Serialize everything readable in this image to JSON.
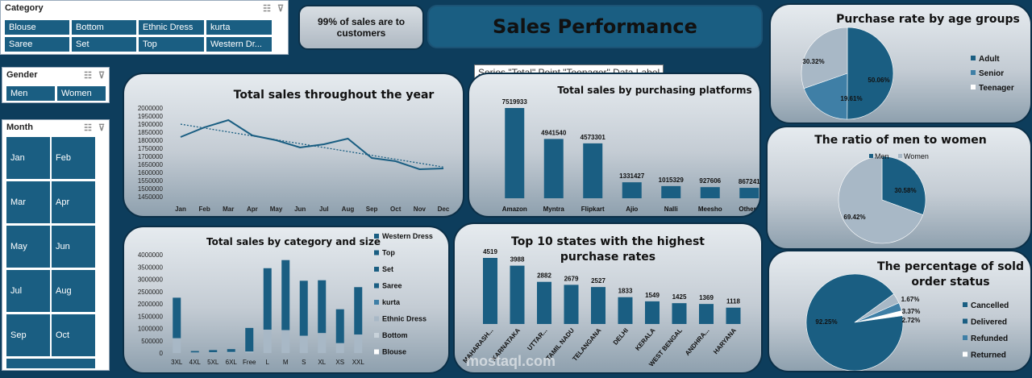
{
  "slicers": {
    "category": {
      "title": "Category",
      "items": [
        "Blouse",
        "Bottom",
        "Ethnic Dress",
        "kurta",
        "Saree",
        "Set",
        "Top",
        "Western Dr..."
      ]
    },
    "gender": {
      "title": "Gender",
      "items": [
        "Men",
        "Women"
      ]
    },
    "month": {
      "title": "Month",
      "items": [
        "Jan",
        "Feb",
        "Mar",
        "Apr",
        "May",
        "Jun",
        "Jul",
        "Aug",
        "Sep",
        "Oct"
      ]
    }
  },
  "kpi": {
    "text": "99% of sales are to customers"
  },
  "dashboard_title": "Sales Performance",
  "tooltip": "Series \"Total\" Point \"Teenager\" Data Label",
  "watermark": "mostaql.com",
  "colors": {
    "primary": "#1a5e82",
    "mid": "#3f7fa6",
    "light": "#a8b8c6",
    "bg": "#0d3d5c"
  },
  "chart_data": [
    {
      "id": "sales_by_month",
      "type": "line",
      "title": "Total sales throughout the year",
      "categories": [
        "Jan",
        "Feb",
        "Mar",
        "Apr",
        "May",
        "Jun",
        "Jul",
        "Aug",
        "Sep",
        "Oct",
        "Nov",
        "Dec"
      ],
      "values": [
        1820000,
        1880000,
        1925000,
        1830000,
        1800000,
        1755000,
        1775000,
        1810000,
        1690000,
        1670000,
        1620000,
        1625000
      ],
      "trendline": true,
      "ylim": [
        1450000,
        2000000
      ],
      "yticks": [
        "2000000",
        "1950000",
        "1900000",
        "1850000",
        "1800000",
        "1750000",
        "1700000",
        "1650000",
        "1600000",
        "1550000",
        "1500000",
        "1450000"
      ]
    },
    {
      "id": "sales_by_platform",
      "type": "bar",
      "title": "Total sales by purchasing platforms",
      "categories": [
        "Amazon",
        "Myntra",
        "Flipkart",
        "Ajio",
        "Nalli",
        "Meesho",
        "Others"
      ],
      "values": [
        7519933,
        4941540,
        4573301,
        1331427,
        1015329,
        927606,
        867241
      ],
      "labels": [
        "7519933",
        "4941540",
        "4573301",
        "1331427",
        "1015329",
        "927606",
        "867241"
      ]
    },
    {
      "id": "sales_by_category_size",
      "type": "bar",
      "stacked": true,
      "title": "Total sales by category and size",
      "categories": [
        "3XL",
        "4XL",
        "5XL",
        "6XL",
        "Free",
        "L",
        "M",
        "S",
        "XL",
        "XS",
        "XXL"
      ],
      "ylim": [
        0,
        4000000
      ],
      "yticks": [
        "4000000",
        "3500000",
        "3000000",
        "2500000",
        "2000000",
        "1500000",
        "1000000",
        "500000",
        "0"
      ],
      "legend": [
        "Western Dress",
        "Top",
        "Set",
        "Saree",
        "kurta",
        "Ethnic Dress",
        "Bottom",
        "Blouse"
      ],
      "totals": [
        2250000,
        80000,
        120000,
        160000,
        1020000,
        3450000,
        3780000,
        2940000,
        2960000,
        1780000,
        2680000
      ],
      "light_part": [
        600000,
        20000,
        30000,
        40000,
        60000,
        950000,
        930000,
        700000,
        810000,
        400000,
        750000
      ]
    },
    {
      "id": "top_states",
      "type": "bar",
      "title": "Top 10 states with the highest purchase rates",
      "categories": [
        "MAHARASH...",
        "KARNATAKA",
        "UTTAR...",
        "TAMIL NADU",
        "TELANGANA",
        "DELHI",
        "KERALA",
        "WEST BENGAL",
        "ANDHRA...",
        "HARYANA"
      ],
      "values": [
        4519,
        3988,
        2882,
        2679,
        2527,
        1833,
        1549,
        1425,
        1369,
        1118
      ],
      "labels": [
        "4519",
        "3988",
        "2882",
        "2679",
        "2527",
        "1833",
        "1549",
        "1425",
        "1369",
        "1118"
      ]
    },
    {
      "id": "age_groups",
      "type": "pie",
      "title": "Purchase rate by age groups",
      "slices": [
        {
          "name": "Adult",
          "value": 50.06,
          "label": "50.06%"
        },
        {
          "name": "Senior",
          "value": 19.61,
          "label": "19.61%"
        },
        {
          "name": "Teenager",
          "value": 30.32,
          "label": "30.32%"
        }
      ]
    },
    {
      "id": "gender_ratio",
      "type": "pie",
      "title": "The ratio of men to women",
      "slices": [
        {
          "name": "Men",
          "value": 30.58,
          "label": "30.58%"
        },
        {
          "name": "Women",
          "value": 69.42,
          "label": "69.42%"
        }
      ]
    },
    {
      "id": "order_status",
      "type": "pie",
      "title": "The percentage of sold order status",
      "slices": [
        {
          "name": "Cancelled",
          "value": 1.67,
          "label": "1.67%"
        },
        {
          "name": "Delivered",
          "value": 92.25,
          "label": "92.25%"
        },
        {
          "name": "Refunded",
          "value": 3.37,
          "label": "3.37%"
        },
        {
          "name": "Returned",
          "value": 2.72,
          "label": "2.72%"
        }
      ],
      "legend": [
        "Cancelled",
        "Delivered",
        "Refunded",
        "Returned"
      ]
    }
  ]
}
